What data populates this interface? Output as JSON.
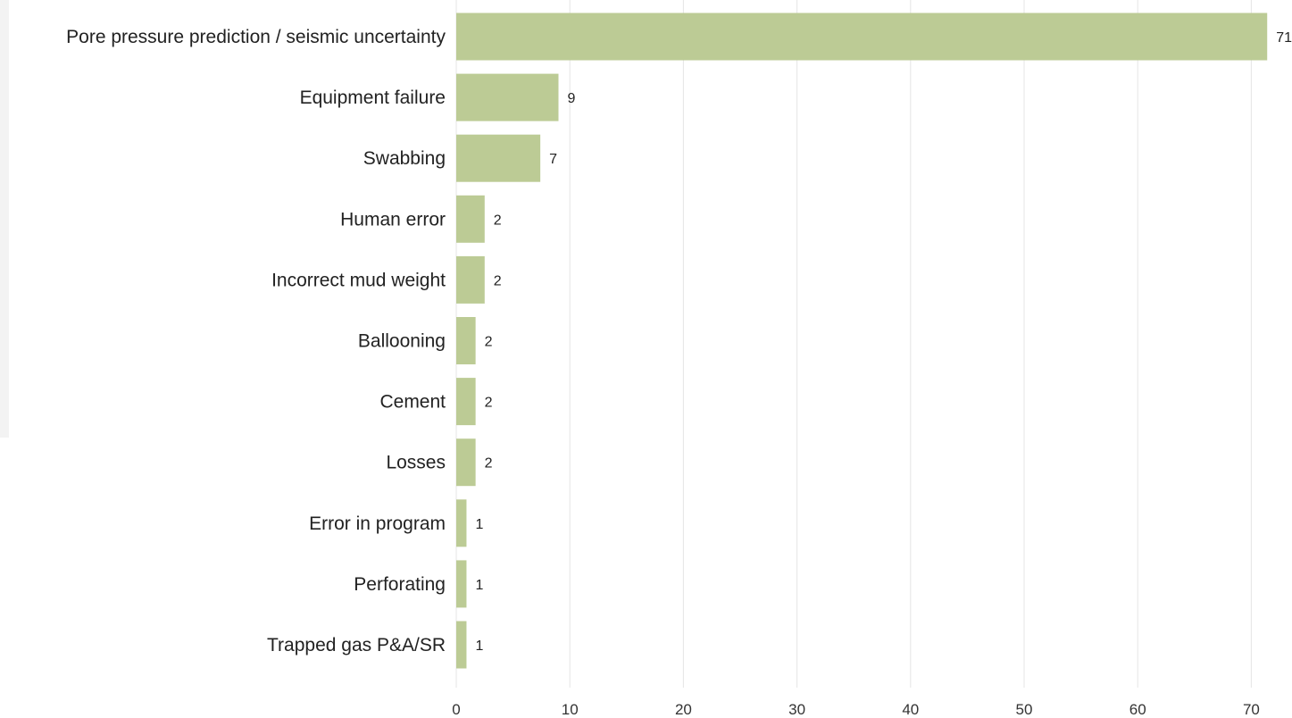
{
  "colors": {
    "bar": "#bccb95",
    "grid": "#e5e5e5",
    "text": "#222222"
  },
  "chart_data": {
    "type": "bar",
    "orientation": "horizontal",
    "categories": [
      "Pore pressure prediction / seismic uncertainty",
      "Equipment failure",
      "Swabbing",
      "Human error",
      "Incorrect mud weight",
      "Ballooning",
      "Cement",
      "Losses",
      "Error in program",
      "Perforating",
      "Trapped gas P&A/SR"
    ],
    "values": [
      71,
      9,
      7,
      2,
      2,
      2,
      2,
      2,
      1,
      1,
      1
    ],
    "data_labels": [
      "71",
      "9",
      "7",
      "2",
      "2",
      "2",
      "2",
      "2",
      "1",
      "1",
      "1"
    ],
    "bar_extents": [
      71.4,
      9.0,
      7.4,
      2.5,
      2.5,
      1.7,
      1.7,
      1.7,
      0.9,
      0.9,
      0.9
    ],
    "xlim": [
      0,
      72
    ],
    "xticks": [
      0,
      10,
      20,
      30,
      40,
      50,
      60,
      70
    ],
    "xtick_labels": [
      "0",
      "10",
      "20",
      "30",
      "40",
      "50",
      "60",
      "70"
    ],
    "grid": true,
    "legend": "none",
    "title": "",
    "xlabel": "",
    "ylabel": ""
  }
}
